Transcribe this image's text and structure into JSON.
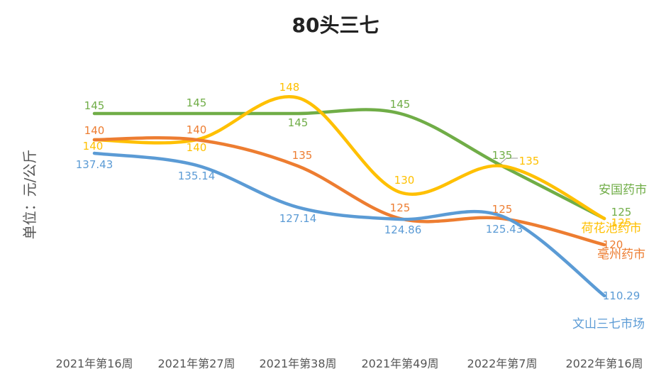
{
  "chart_data": {
    "type": "line",
    "title": "80头三七",
    "xlabel": "",
    "ylabel": "单位：元/公斤",
    "categories": [
      "2021年第16周",
      "2021年第27周",
      "2021年第38周",
      "2021年第49周",
      "2022年第7周",
      "2022年第16周"
    ],
    "ylim": [
      100,
      155
    ],
    "grid": false,
    "legend": "end-of-line labels",
    "smooth": true,
    "series": [
      {
        "name": "安国药市",
        "color": "#70AD47",
        "values": [
          145,
          145,
          145,
          145,
          135,
          125
        ],
        "labels": [
          "145",
          "145",
          "145",
          "145",
          "135",
          "125"
        ]
      },
      {
        "name": "荷花池药市",
        "color": "#FFC000",
        "values": [
          140,
          140,
          148,
          130,
          135,
          125
        ],
        "labels": [
          "140",
          "140",
          "148",
          "130",
          "135",
          "125"
        ]
      },
      {
        "name": "亳州药市",
        "color": "#ED7D31",
        "values": [
          140,
          140,
          135,
          125,
          125,
          120
        ],
        "labels": [
          "140",
          "140",
          "135",
          "125",
          "125",
          "120"
        ]
      },
      {
        "name": "文山三七市场",
        "color": "#5B9BD5",
        "values": [
          137.43,
          135.14,
          127.14,
          124.86,
          125.43,
          110.29
        ],
        "labels": [
          "137.43",
          "135.14",
          "127.14",
          "124.86",
          "125.43",
          "110.29"
        ]
      }
    ]
  }
}
